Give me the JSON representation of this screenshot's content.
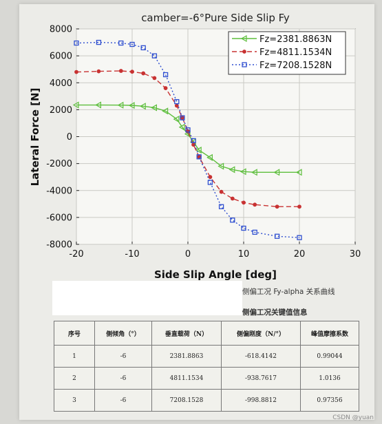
{
  "chart_data": {
    "type": "line",
    "title": "camber=-6°Pure Side Slip Fy",
    "xlabel": "Side Slip Angle [deg]",
    "ylabel": "Lateral Force [N]",
    "xlim": [
      -20,
      30
    ],
    "ylim": [
      -8000,
      8000
    ],
    "xticks": [
      -20,
      -10,
      0,
      10,
      20,
      30
    ],
    "yticks": [
      -8000,
      -6000,
      -4000,
      -2000,
      0,
      2000,
      4000,
      6000,
      8000
    ],
    "grid": true,
    "legend_position": "top-right",
    "series": [
      {
        "name": "Fz=2381.8863N",
        "color": "#5dbe3c",
        "marker": "triangle-left",
        "dash": "solid",
        "x": [
          -20,
          -16,
          -12,
          -10,
          -8,
          -6,
          -4,
          -2,
          -1,
          0,
          1,
          2,
          4,
          6,
          8,
          10,
          12,
          16,
          20
        ],
        "y": [
          2350,
          2350,
          2340,
          2320,
          2260,
          2150,
          1900,
          1300,
          700,
          200,
          -400,
          -1000,
          -1550,
          -2200,
          -2450,
          -2600,
          -2650,
          -2650,
          -2650
        ]
      },
      {
        "name": "Fz=4811.1534N",
        "color": "#c83232",
        "marker": "dot",
        "dash": "dashed",
        "x": [
          -20,
          -16,
          -12,
          -10,
          -8,
          -6,
          -4,
          -2,
          -1,
          0,
          1,
          2,
          4,
          6,
          8,
          10,
          12,
          16,
          20
        ],
        "y": [
          4800,
          4850,
          4880,
          4820,
          4700,
          4350,
          3600,
          2300,
          1400,
          400,
          -600,
          -1500,
          -3000,
          -4100,
          -4600,
          -4900,
          -5050,
          -5200,
          -5200
        ]
      },
      {
        "name": "Fz=7208.1528N",
        "color": "#2f4fd0",
        "marker": "square",
        "dash": "dotted",
        "x": [
          -20,
          -16,
          -12,
          -10,
          -8,
          -6,
          -4,
          -2,
          -1,
          0,
          1,
          2,
          4,
          6,
          8,
          10,
          12,
          16,
          20
        ],
        "y": [
          6950,
          7000,
          6950,
          6850,
          6600,
          6000,
          4600,
          2600,
          1400,
          500,
          -300,
          -1500,
          -3400,
          -5200,
          -6200,
          -6800,
          -7100,
          -7400,
          -7500
        ]
      }
    ]
  },
  "captions": {
    "figure": "侧偏工况 Fy-alpha 关系曲线",
    "table": "侧偏工况关键值信息"
  },
  "table": {
    "headers": [
      "序号",
      "侧倾角（°）",
      "垂直载荷（N）",
      "侧偏刚度（N/°）",
      "峰值摩擦系数"
    ],
    "rows": [
      [
        "1",
        "-6",
        "2381.8863",
        "-618.4142",
        "0.99044"
      ],
      [
        "2",
        "-6",
        "4811.1534",
        "-938.7617",
        "1.0136"
      ],
      [
        "3",
        "-6",
        "7208.1528",
        "-998.8812",
        "0.97356"
      ]
    ]
  },
  "watermark": "CSDN @yuan"
}
